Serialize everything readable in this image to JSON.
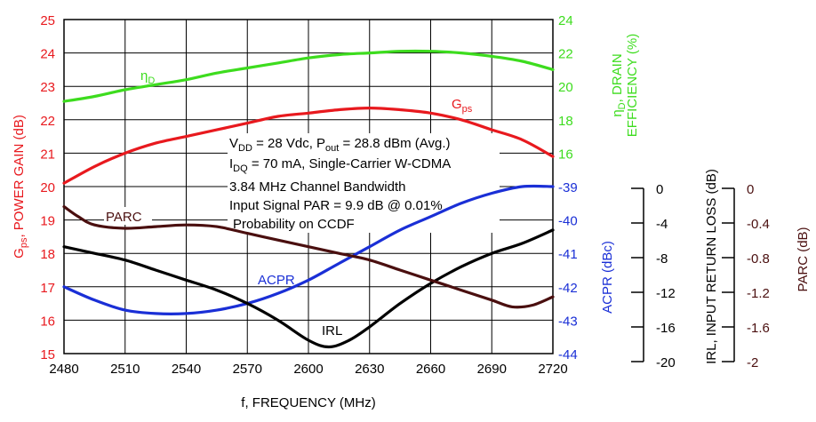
{
  "colors": {
    "gps": "#e8191e",
    "eta": "#3ddc1e",
    "acpr": "#1a2fd6",
    "irl": "#000000",
    "parc": "#4a0f0f"
  },
  "chart_data": {
    "type": "line",
    "xlabel": "f, FREQUENCY (MHz)",
    "xlim": [
      2480,
      2720
    ],
    "x_ticks": [
      "2480",
      "2510",
      "2540",
      "2570",
      "2600",
      "2630",
      "2660",
      "2690",
      "2720"
    ],
    "grid": true,
    "axes": {
      "gps": {
        "label": "G_ps, POWER GAIN (dB)",
        "ylim": [
          15,
          25
        ],
        "ticks": [
          "15",
          "16",
          "17",
          "18",
          "19",
          "20",
          "21",
          "22",
          "23",
          "24",
          "25"
        ]
      },
      "eta": {
        "label": "η_D, DRAIN EFFICIENCY (%)",
        "ylim": [
          4,
          24
        ],
        "ticks": [
          "16",
          "18",
          "20",
          "22",
          "24"
        ]
      },
      "acpr": {
        "label": "ACPR (dBc)",
        "ylim": [
          -44,
          -34
        ],
        "ticks": [
          "-39",
          "-40",
          "-41",
          "-42",
          "-43",
          "-44"
        ]
      },
      "irl": {
        "label": "IRL, INPUT RETURN LOSS (dB)",
        "ticks": [
          "0",
          "-4",
          "-8",
          "-12",
          "-16",
          "-20"
        ]
      },
      "parc": {
        "label": "PARC (dB)",
        "ticks": [
          "0",
          "-0.4",
          "-0.8",
          "-1.2",
          "-1.6",
          "-2"
        ]
      }
    },
    "series": [
      {
        "name": "G_ps",
        "axis": "gps",
        "x": [
          2480,
          2495,
          2510,
          2525,
          2540,
          2555,
          2570,
          2585,
          2600,
          2615,
          2630,
          2645,
          2660,
          2675,
          2690,
          2705,
          2720
        ],
        "y": [
          20.1,
          20.6,
          21.0,
          21.3,
          21.5,
          21.7,
          21.9,
          22.1,
          22.2,
          22.3,
          22.35,
          22.3,
          22.2,
          22.0,
          21.7,
          21.4,
          20.9
        ]
      },
      {
        "name": "η_D",
        "axis": "eta",
        "x": [
          2480,
          2495,
          2510,
          2525,
          2540,
          2555,
          2570,
          2585,
          2600,
          2615,
          2630,
          2645,
          2660,
          2675,
          2690,
          2705,
          2720
        ],
        "y": [
          19.1,
          19.4,
          19.8,
          20.1,
          20.4,
          20.8,
          21.1,
          21.4,
          21.7,
          21.9,
          22.0,
          22.1,
          22.1,
          22.0,
          21.8,
          21.5,
          21.0
        ]
      },
      {
        "name": "ACPR",
        "axis": "acpr",
        "x": [
          2480,
          2495,
          2510,
          2525,
          2540,
          2555,
          2570,
          2585,
          2600,
          2615,
          2630,
          2645,
          2660,
          2675,
          2690,
          2705,
          2720
        ],
        "y": [
          -42.0,
          -42.4,
          -42.7,
          -42.8,
          -42.8,
          -42.7,
          -42.5,
          -42.2,
          -41.8,
          -41.3,
          -40.8,
          -40.3,
          -39.9,
          -39.5,
          -39.2,
          -39.0,
          -39.0
        ]
      },
      {
        "name": "IRL",
        "axis": "gps",
        "x": [
          2480,
          2495,
          2510,
          2525,
          2540,
          2555,
          2570,
          2585,
          2600,
          2610,
          2620,
          2630,
          2645,
          2660,
          2675,
          2690,
          2705,
          2720
        ],
        "y": [
          18.2,
          18.0,
          17.8,
          17.5,
          17.2,
          16.9,
          16.5,
          16.0,
          15.4,
          15.2,
          15.4,
          15.8,
          16.5,
          17.1,
          17.6,
          18.0,
          18.3,
          18.7
        ]
      },
      {
        "name": "PARC",
        "axis": "gps",
        "x": [
          2480,
          2487,
          2495,
          2510,
          2525,
          2540,
          2555,
          2570,
          2585,
          2600,
          2615,
          2630,
          2645,
          2660,
          2675,
          2690,
          2700,
          2710,
          2720
        ],
        "y": [
          19.4,
          19.1,
          18.85,
          18.75,
          18.8,
          18.85,
          18.8,
          18.6,
          18.4,
          18.2,
          18.0,
          17.8,
          17.5,
          17.2,
          16.9,
          16.6,
          16.4,
          16.45,
          16.7
        ]
      }
    ],
    "series_labels": {
      "eta": {
        "base": "η",
        "sub": "D"
      },
      "gps": {
        "base": "G",
        "sub": "ps"
      },
      "acpr": "ACPR",
      "irl": "IRL",
      "parc": "PARC"
    },
    "annotation": {
      "l1": {
        "a": "V",
        "a_sub": "DD",
        "b": " = 28 Vdc, P",
        "b_sub": "out",
        "c": " = 28.8 dBm (Avg.)"
      },
      "l2": {
        "a": "I",
        "a_sub": "DQ",
        "b": " = 70 mA, Single-Carrier W-CDMA"
      },
      "l3": "3.84 MHz Channel Bandwidth",
      "l4": "Input Signal PAR = 9.9 dB @ 0.01%",
      "l5": "Probability on CCDF"
    }
  }
}
